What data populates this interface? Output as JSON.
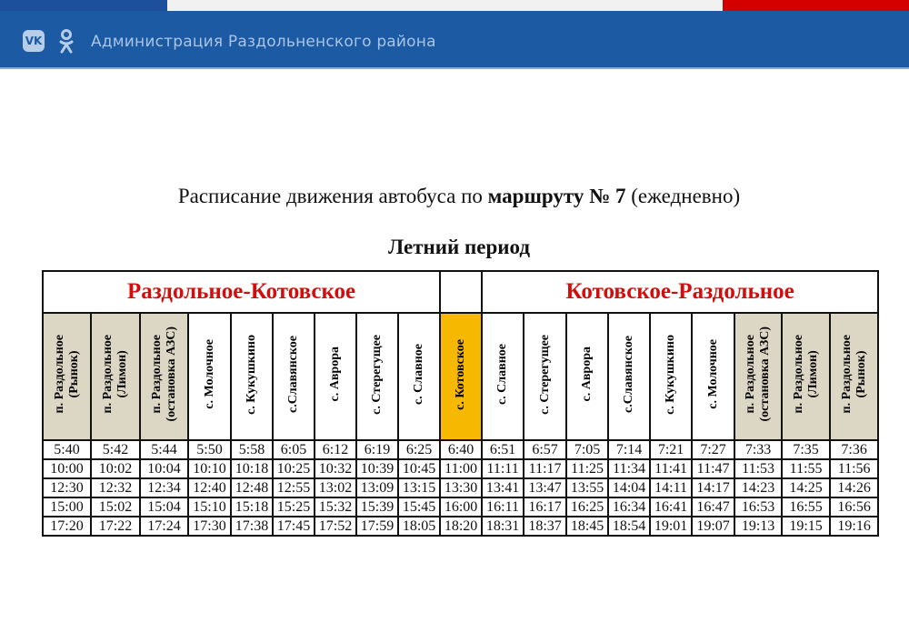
{
  "header": {
    "org_name": "Администрация Раздольненского района",
    "icons": [
      "vk-icon",
      "odnoklassniki-icon"
    ],
    "colors": {
      "blue": "#1c5aa3",
      "red": "#d40000"
    }
  },
  "document": {
    "title_prefix": "Расписание движения автобуса по ",
    "title_bold": "маршруту № 7",
    "title_suffix": " (ежедневно)",
    "period": "Летний период",
    "direction_forward": "Раздольное-Котовское",
    "direction_back": "Котовское-Раздольное",
    "stops": [
      {
        "name": "п. Раздольное\n(Рынок)",
        "style": "tan"
      },
      {
        "name": "п. Раздольное\n(Лимон)",
        "style": "tan"
      },
      {
        "name": "п. Раздольное\n(остановка АЗС)",
        "style": "tan"
      },
      {
        "name": "с. Молочное",
        "style": "plain"
      },
      {
        "name": "с. Кукушкино",
        "style": "plain"
      },
      {
        "name": "с.Славянское",
        "style": "plain"
      },
      {
        "name": "с. Аврора",
        "style": "plain"
      },
      {
        "name": "с. Стерегущее",
        "style": "plain"
      },
      {
        "name": "с. Славное",
        "style": "plain"
      },
      {
        "name": "с. Котовское",
        "style": "gold"
      },
      {
        "name": "с. Славное",
        "style": "plain"
      },
      {
        "name": "с. Стерегущее",
        "style": "plain"
      },
      {
        "name": "с. Аврора",
        "style": "plain"
      },
      {
        "name": "с.Славянское",
        "style": "plain"
      },
      {
        "name": "с. Кукушкино",
        "style": "plain"
      },
      {
        "name": "с. Молочное",
        "style": "plain"
      },
      {
        "name": "п. Раздольное\n(остановка АЗС)",
        "style": "tan"
      },
      {
        "name": "п. Раздольное\n(Лимон)",
        "style": "tan"
      },
      {
        "name": "п. Раздольное\n(Рынок)",
        "style": "tan"
      }
    ],
    "rows": [
      [
        "5:40",
        "5:42",
        "5:44",
        "5:50",
        "5:58",
        "6:05",
        "6:12",
        "6:19",
        "6:25",
        "6:40",
        "6:51",
        "6:57",
        "7:05",
        "7:14",
        "7:21",
        "7:27",
        "7:33",
        "7:35",
        "7:36"
      ],
      [
        "10:00",
        "10:02",
        "10:04",
        "10:10",
        "10:18",
        "10:25",
        "10:32",
        "10:39",
        "10:45",
        "11:00",
        "11:11",
        "11:17",
        "11:25",
        "11:34",
        "11:41",
        "11:47",
        "11:53",
        "11:55",
        "11:56"
      ],
      [
        "12:30",
        "12:32",
        "12:34",
        "12:40",
        "12:48",
        "12:55",
        "13:02",
        "13:09",
        "13:15",
        "13:30",
        "13:41",
        "13:47",
        "13:55",
        "14:04",
        "14:11",
        "14:17",
        "14:23",
        "14:25",
        "14:26"
      ],
      [
        "15:00",
        "15:02",
        "15:04",
        "15:10",
        "15:18",
        "15:25",
        "15:32",
        "15:39",
        "15:45",
        "16:00",
        "16:11",
        "16:17",
        "16:25",
        "16:34",
        "16:41",
        "16:47",
        "16:53",
        "16:55",
        "16:56"
      ],
      [
        "17:20",
        "17:22",
        "17:24",
        "17:30",
        "17:38",
        "17:45",
        "17:52",
        "17:59",
        "18:05",
        "18:20",
        "18:31",
        "18:37",
        "18:45",
        "18:54",
        "19:01",
        "19:07",
        "19:13",
        "19:15",
        "19:16"
      ]
    ],
    "colors": {
      "direction_text": "#d50c0c",
      "terminal_highlight": "#f6b800",
      "town_stops": "#dcd6c4"
    }
  }
}
